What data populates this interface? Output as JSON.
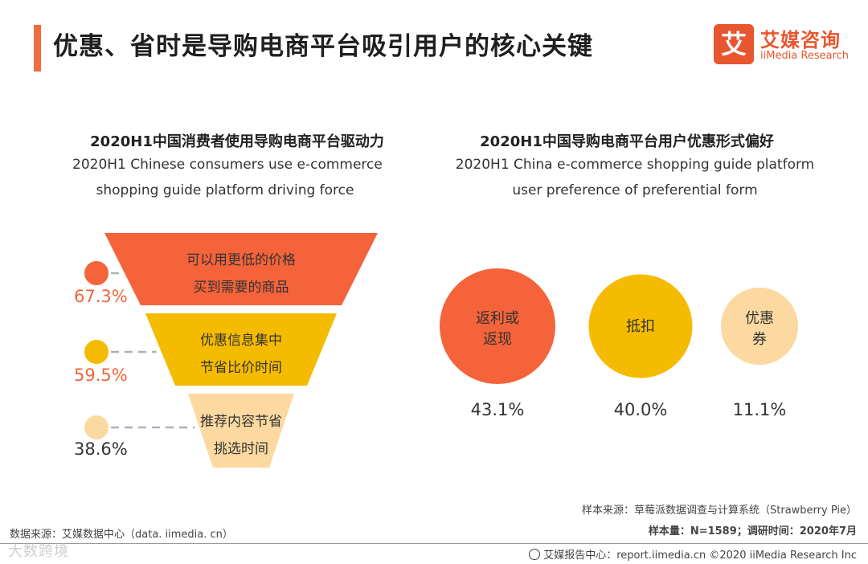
{
  "title": "优惠、省时是导购电商平台吸引用户的核心关键",
  "logo": {
    "mark": "艾",
    "name_cn": "艾媒咨询",
    "name_en": "iiMedia Research"
  },
  "colors": {
    "accent": "#f06c3d",
    "red": "#f4633a",
    "yellow": "#f5bb00",
    "beige": "#fcd9a0",
    "text": "#222222"
  },
  "chart_data": [
    {
      "type": "funnel",
      "title": "2020H1中国消费者使用导购电商平台驱动力",
      "subtitle_line1": "2020H1 Chinese consumers use e-commerce",
      "subtitle_line2": "shopping guide platform driving force",
      "unit": "%",
      "stages": [
        {
          "label_line1": "可以用更低的价格",
          "label_line2": "买到需要的商品",
          "value": 67.3,
          "value_text": "67.3%",
          "color": "#f4633a"
        },
        {
          "label_line1": "优惠信息集中",
          "label_line2": "节省比价时间",
          "value": 59.5,
          "value_text": "59.5%",
          "color": "#f5bb00"
        },
        {
          "label_line1": "推荐内容节省",
          "label_line2": "挑选时间",
          "value": 38.6,
          "value_text": "38.6%",
          "color": "#fcd9a0"
        }
      ]
    },
    {
      "type": "bubble",
      "title": "2020H1中国导购电商平台用户优惠形式偏好",
      "subtitle_line1": "2020H1 China e-commerce shopping guide platform",
      "subtitle_line2": "user preference of preferential form",
      "unit": "%",
      "items": [
        {
          "label_line1": "返利或",
          "label_line2": "返现",
          "value": 43.1,
          "value_text": "43.1%",
          "color": "#f4633a"
        },
        {
          "label_line1": "抵扣",
          "label_line2": "",
          "value": 40.0,
          "value_text": "40.0%",
          "color": "#f5bb00"
        },
        {
          "label_line1": "优惠",
          "label_line2": "券",
          "value": 11.1,
          "value_text": "11.1%",
          "color": "#fcd9a0"
        }
      ]
    }
  ],
  "footer": {
    "sample_source": "样本来源：草莓派数据调查与计算系统（Strawberry Pie）",
    "sample_size": "样本量：N=1589；调研时间：2020年7月",
    "data_source": "数据来源：艾媒数据中心（data. iimedia. cn）",
    "report_center": "艾媒报告中心：report.iimedia.cn   ©2020  iiMedia Research  Inc",
    "watermark": "大数跨境"
  }
}
